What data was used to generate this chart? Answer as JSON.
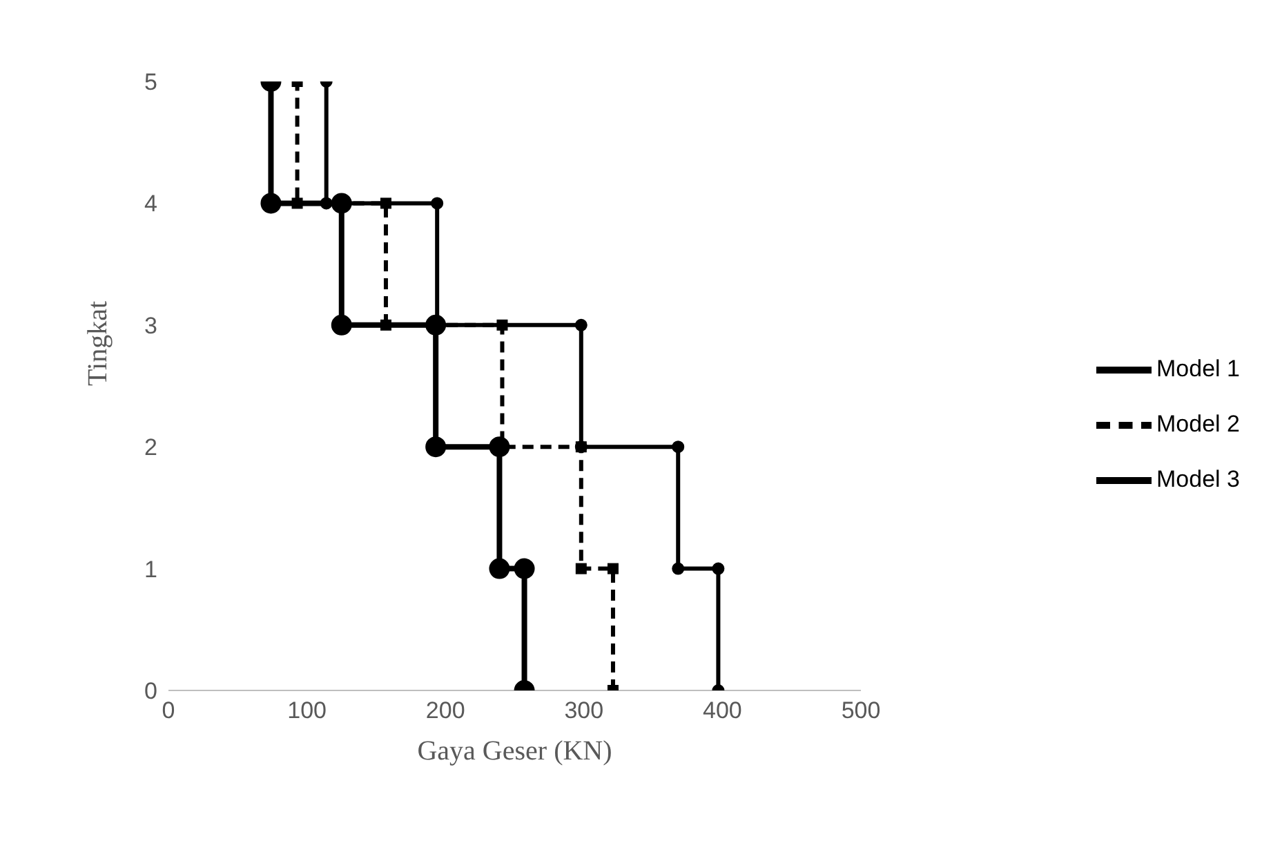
{
  "chart_data": {
    "type": "line",
    "xlabel": "Gaya Geser (KN)",
    "ylabel": "Tingkat",
    "xlim": [
      0,
      500
    ],
    "xticks": [
      0,
      100,
      200,
      300,
      400,
      500
    ],
    "ylim": [
      0,
      5
    ],
    "yticks": [
      0,
      1,
      2,
      3,
      4,
      5
    ],
    "grid": false,
    "legend": "right",
    "series": [
      {
        "name": "Model 1",
        "color": "#000000",
        "marker": "circle",
        "line_style": "solid",
        "x": [
          397,
          397,
          368,
          368,
          298,
          298,
          194,
          194,
          114,
          114
        ],
        "values": [
          0,
          1,
          1,
          2,
          2,
          3,
          3,
          4,
          4,
          5
        ]
      },
      {
        "name": "Model 2",
        "color": "#000000",
        "marker": "square",
        "line_style": "dashed",
        "x": [
          321,
          321,
          298,
          298,
          241,
          241,
          157,
          157,
          93,
          93
        ],
        "values": [
          0,
          1,
          1,
          2,
          2,
          3,
          3,
          4,
          4,
          5
        ]
      },
      {
        "name": "Model 3",
        "color": "#000000",
        "marker": "circle",
        "line_style": "solid",
        "x": [
          257,
          257,
          239,
          239,
          193,
          193,
          125,
          125,
          74,
          74
        ],
        "values": [
          0,
          1,
          1,
          2,
          2,
          3,
          3,
          4,
          4,
          5
        ]
      }
    ]
  }
}
